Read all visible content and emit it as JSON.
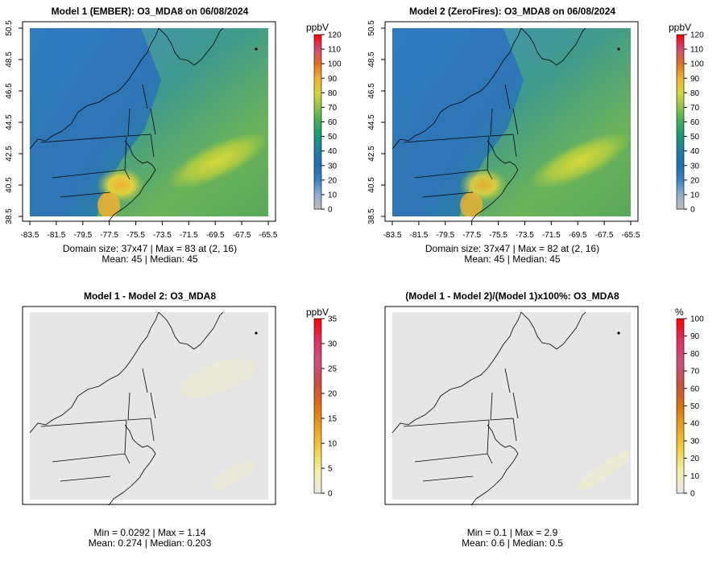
{
  "panels": [
    {
      "title": "Model 1 (EMBER): O3_MDA8 on 06/08/2024",
      "stats_line1": "Domain size: 37x47 | Max = 83 at (2, 16)",
      "stats_line2": "Mean: 45 |  Median: 45",
      "unit": "ppbV",
      "legend_ticks": [
        "120",
        "110",
        "100",
        "90",
        "80",
        "70",
        "60",
        "50",
        "40",
        "30",
        "20",
        "10",
        "0"
      ],
      "x_ticks": [
        "-83.5",
        "-81.5",
        "-79.5",
        "-77.5",
        "-75.5",
        "-73.5",
        "-71.5",
        "-69.5",
        "-67.5",
        "-65.5"
      ],
      "y_ticks": [
        "50.5",
        "48.5",
        "46.5",
        "44.5",
        "42.5",
        "40.5",
        "38.5"
      ]
    },
    {
      "title": "Model 2 (ZeroFires): O3_MDA8 on 06/08/2024",
      "stats_line1": "Domain size: 37x47 | Max = 82 at (2, 16)",
      "stats_line2": "Mean: 45 |  Median: 45",
      "unit": "ppbV",
      "legend_ticks": [
        "120",
        "110",
        "100",
        "90",
        "80",
        "70",
        "60",
        "50",
        "40",
        "30",
        "20",
        "10",
        "0"
      ],
      "x_ticks": [
        "-83.5",
        "-81.5",
        "-79.5",
        "-77.5",
        "-75.5",
        "-73.5",
        "-71.5",
        "-69.5",
        "-67.5",
        "-65.5"
      ],
      "y_ticks": [
        "50.5",
        "48.5",
        "46.5",
        "44.5",
        "42.5",
        "40.5",
        "38.5"
      ]
    },
    {
      "title": "Model 1 - Model 2: O3_MDA8",
      "stats_line1": "Min = 0.0292 | Max = 1.14",
      "stats_line2": "Mean: 0.274 |  Median: 0.203",
      "unit": "ppbV",
      "legend_ticks": [
        "35",
        "30",
        "25",
        "20",
        "15",
        "10",
        "5",
        "0"
      ]
    },
    {
      "title": "(Model 1 - Model 2)/(Model 1)x100%: O3_MDA8",
      "stats_line1": "Min = 0.1 | Max = 2.9",
      "stats_line2": "Mean: 0.6 |  Median: 0.5",
      "unit": "%",
      "legend_ticks": [
        "100",
        "90",
        "80",
        "70",
        "60",
        "50",
        "40",
        "30",
        "20",
        "10",
        "0"
      ]
    }
  ],
  "colors": {
    "ozone_scale": [
      "#bdbdbd",
      "#8fb0d0",
      "#3a82c4",
      "#1d6fb8",
      "#1e7fa0",
      "#159a7a",
      "#3fae5a",
      "#8ec34a",
      "#d6d63a",
      "#f0b030",
      "#e07020",
      "#d04878",
      "#ff0000"
    ],
    "diff_scale": [
      "#e8e8e8",
      "#f5f0a8",
      "#f2d040",
      "#eca020",
      "#dd7010",
      "#c85040",
      "#cc5080",
      "#e03060",
      "#ff0000"
    ],
    "background_field": "#e6e6e6",
    "ozone_base": "#3d86c6"
  }
}
